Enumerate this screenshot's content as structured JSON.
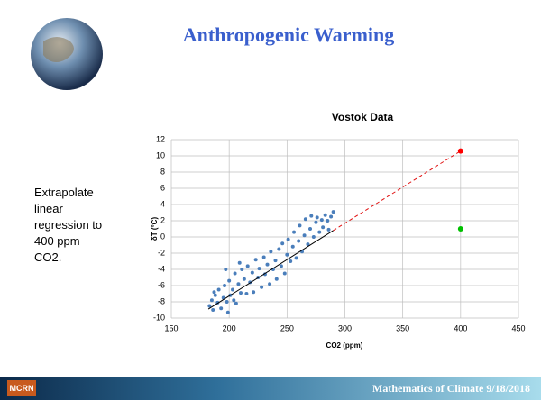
{
  "slide": {
    "title": "Anthropogenic Warming",
    "side_text": [
      "Extrapolate",
      "linear",
      "regression to",
      "400 ppm",
      "CO2."
    ],
    "footer": "Mathematics of Climate  9/18/2018",
    "logo": "MCRN"
  },
  "chart_data": {
    "type": "scatter",
    "title": "Vostok Data",
    "x_label": "CO2 (ppm)",
    "y_label": "δT (°C)",
    "xlim": [
      150,
      450
    ],
    "xticks": [
      150,
      200,
      250,
      300,
      350,
      400,
      450
    ],
    "ylim": [
      -10,
      12
    ],
    "yticks": [
      -10,
      -8,
      -6,
      -4,
      -2,
      0,
      2,
      4,
      6,
      8,
      10,
      12
    ],
    "grid": true,
    "series": [
      {
        "mode": "markers",
        "color": "#4a7ebb",
        "x": [
          183,
          185,
          186,
          188,
          190,
          191,
          193,
          195,
          196,
          198,
          200,
          201,
          203,
          205,
          206,
          208,
          210,
          211,
          213,
          215,
          216,
          218,
          220,
          221,
          223,
          225,
          226,
          228,
          230,
          231,
          233,
          235,
          236,
          238,
          240,
          241,
          243,
          245,
          246,
          248,
          250,
          251,
          253,
          255,
          256,
          258,
          260,
          261,
          263,
          265,
          266,
          268,
          270,
          271,
          273,
          275,
          276,
          278,
          280,
          281,
          283,
          285,
          286,
          288,
          290,
          187,
          197,
          209,
          204,
          199
        ],
        "values": [
          -8.5,
          -7.8,
          -9.0,
          -7.2,
          -8.1,
          -6.5,
          -8.8,
          -7.5,
          -6.0,
          -8.0,
          -5.4,
          -7.2,
          -6.5,
          -4.5,
          -8.2,
          -5.8,
          -6.9,
          -4.0,
          -5.2,
          -7.0,
          -3.6,
          -5.6,
          -4.4,
          -6.8,
          -2.8,
          -5.0,
          -3.9,
          -6.2,
          -2.5,
          -4.6,
          -3.4,
          -5.8,
          -1.8,
          -4.0,
          -2.9,
          -5.2,
          -1.5,
          -3.6,
          -0.8,
          -4.5,
          -2.2,
          -0.3,
          -3.0,
          -1.2,
          0.6,
          -2.6,
          -0.5,
          1.4,
          -1.8,
          0.2,
          2.2,
          -0.9,
          1.0,
          2.6,
          0.0,
          1.8,
          2.4,
          0.6,
          2.1,
          1.2,
          2.7,
          2.0,
          0.9,
          2.5,
          3.1,
          -6.8,
          -4.0,
          -3.2,
          -7.8,
          -9.3
        ]
      },
      {
        "mode": "line",
        "color": "#000000",
        "x": [
          182,
          290
        ],
        "values": [
          -8.9,
          0.8
        ]
      },
      {
        "mode": "line",
        "dash": true,
        "color": "#e01010",
        "x": [
          290,
          400
        ],
        "values": [
          0.8,
          10.6
        ]
      },
      {
        "mode": "markers",
        "color": "#ff0000",
        "x": [
          400
        ],
        "values": [
          10.6
        ]
      },
      {
        "mode": "markers",
        "color": "#00c000",
        "x": [
          400
        ],
        "values": [
          1.0
        ]
      }
    ]
  }
}
